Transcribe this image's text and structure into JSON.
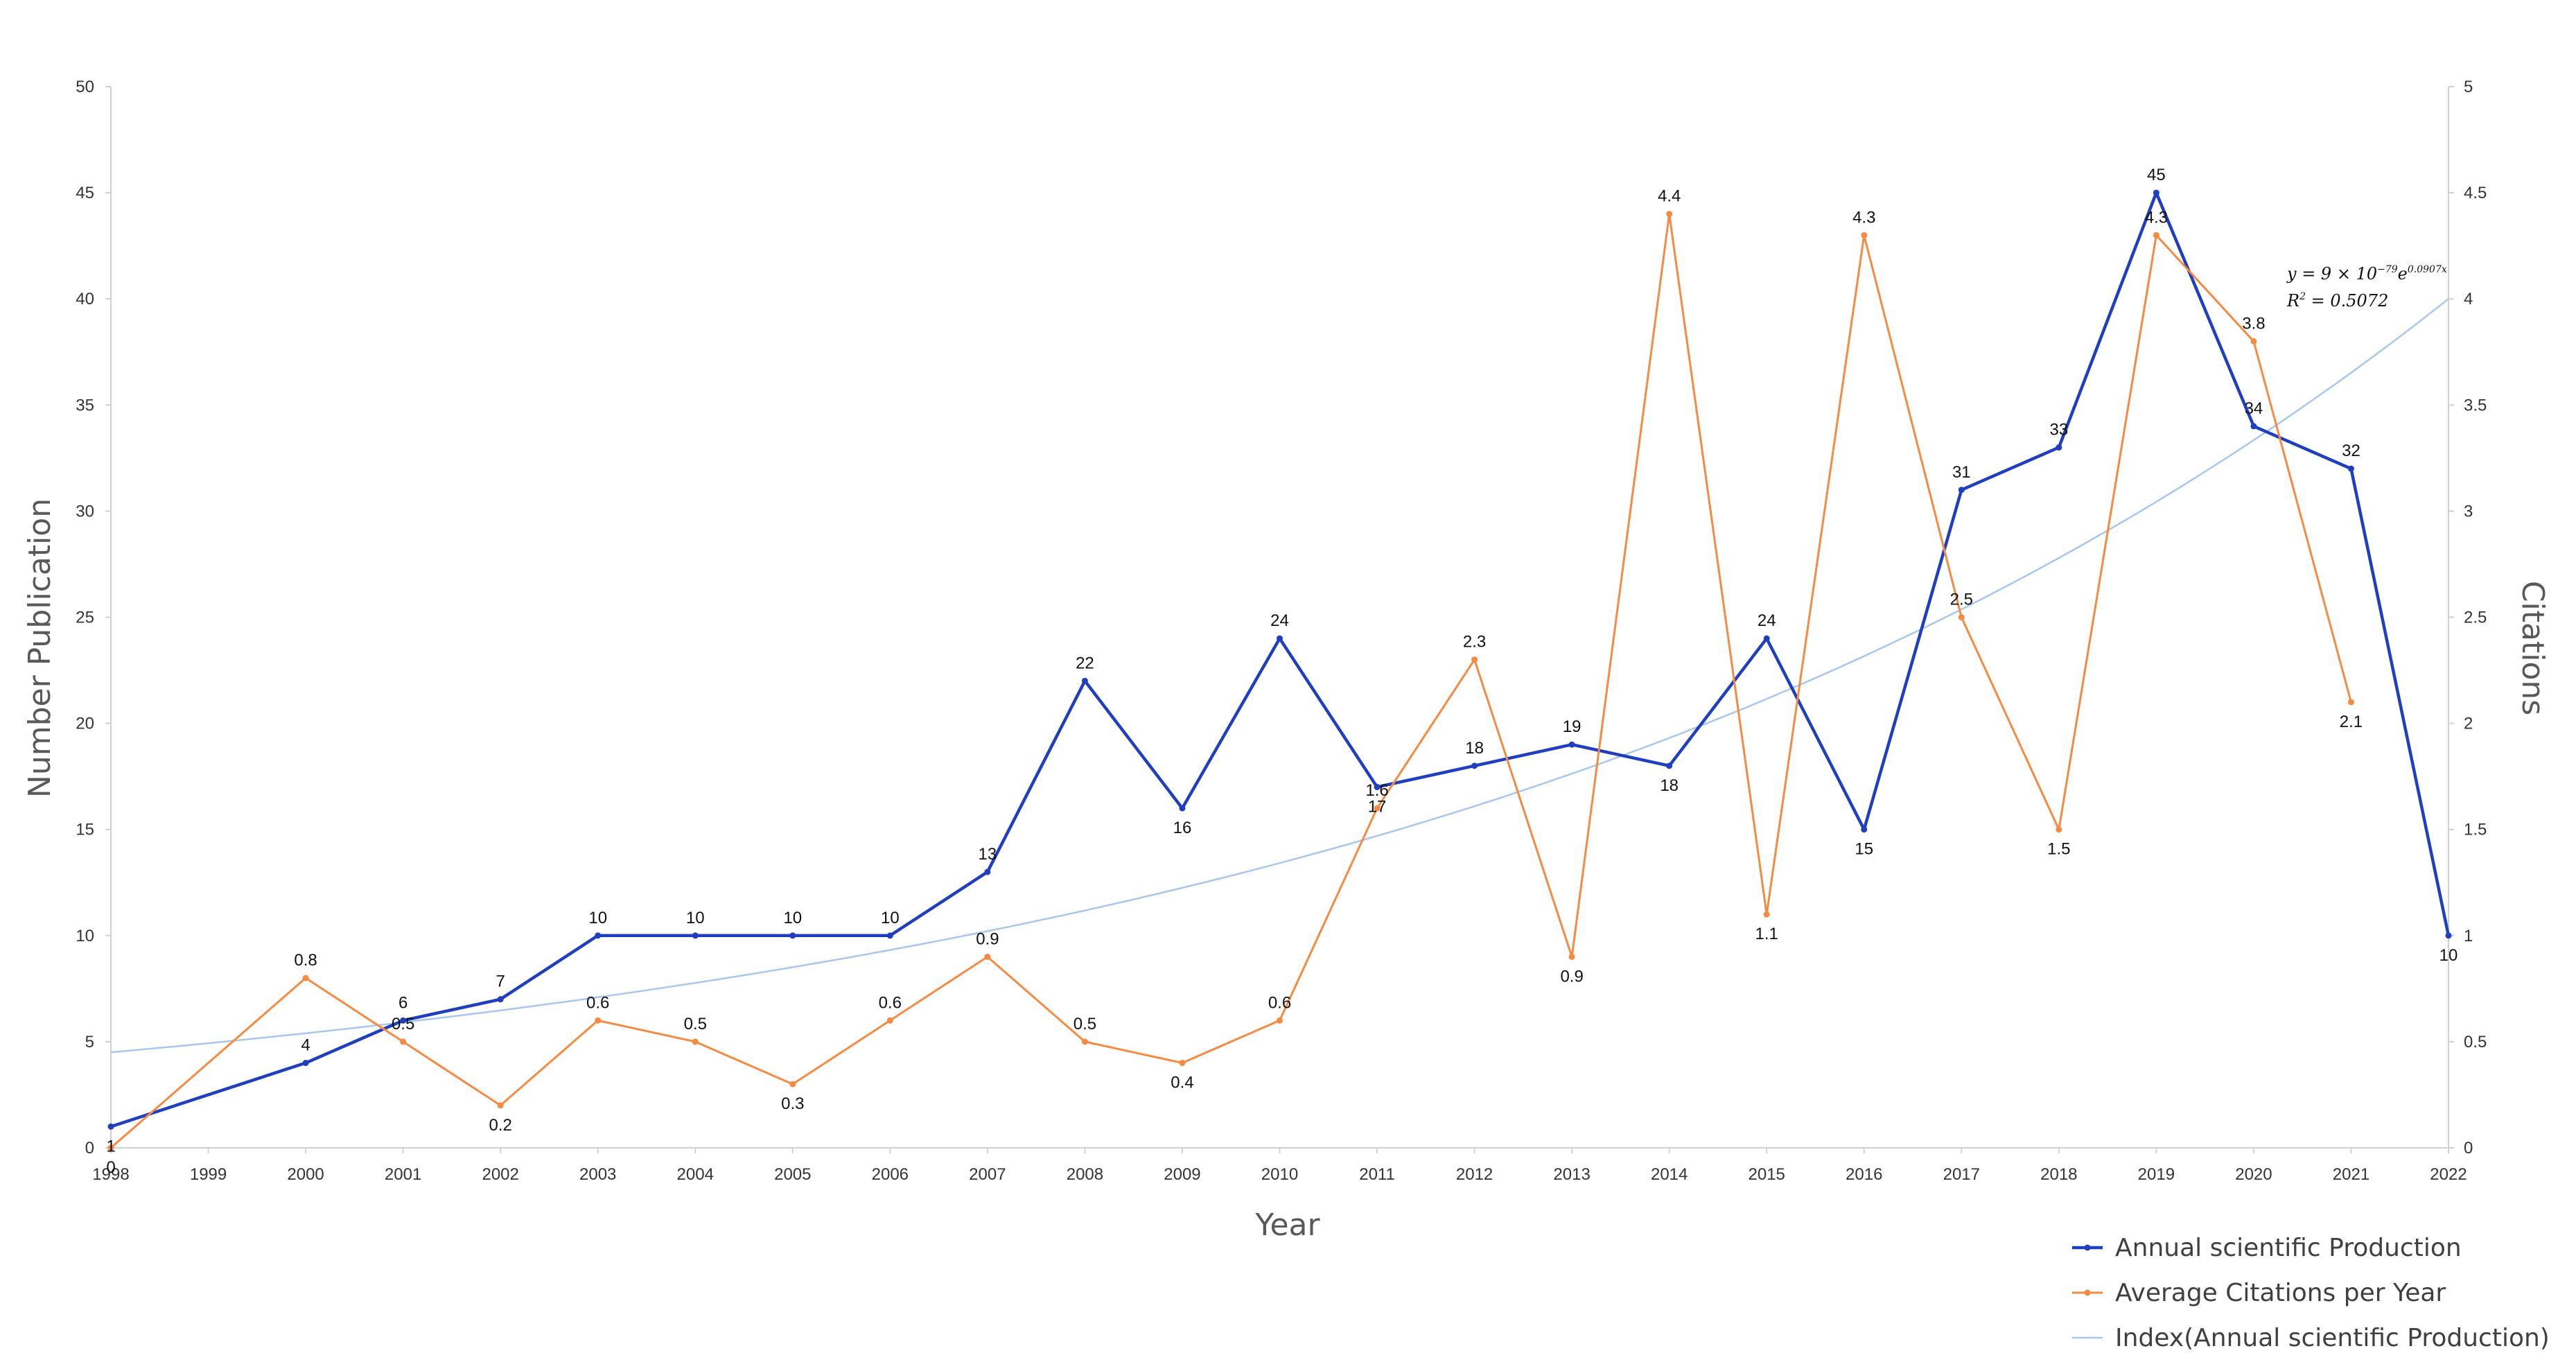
{
  "chart_data": {
    "type": "line",
    "xlabel": "Year",
    "ylabel": "Number Publication",
    "y2label": "Citations",
    "x": [
      1998,
      1999,
      2000,
      2001,
      2002,
      2003,
      2004,
      2005,
      2006,
      2007,
      2008,
      2009,
      2010,
      2011,
      2012,
      2013,
      2014,
      2015,
      2016,
      2017,
      2018,
      2019,
      2020,
      2021,
      2022
    ],
    "ylim": [
      0,
      50
    ],
    "y_ticks": [
      0,
      5,
      10,
      15,
      20,
      25,
      30,
      35,
      40,
      45,
      50
    ],
    "y2lim": [
      0,
      5
    ],
    "y2_ticks": [
      "0",
      "0.5",
      "1",
      "1.5",
      "2",
      "2.5",
      "3",
      "3.5",
      "4",
      "4.5",
      "5"
    ],
    "grid": false,
    "legend_position": "bottom-right",
    "series": [
      {
        "name": "Annual scientific Production",
        "axis": "left",
        "color": "#1f3fbf",
        "points": [
          [
            1998,
            1
          ],
          [
            2000,
            4
          ],
          [
            2001,
            6
          ],
          [
            2002,
            7
          ],
          [
            2003,
            10
          ],
          [
            2004,
            10
          ],
          [
            2005,
            10
          ],
          [
            2006,
            10
          ],
          [
            2007,
            13
          ],
          [
            2008,
            22
          ],
          [
            2009,
            16
          ],
          [
            2010,
            24
          ],
          [
            2011,
            17
          ],
          [
            2012,
            18
          ],
          [
            2013,
            19
          ],
          [
            2014,
            18
          ],
          [
            2015,
            24
          ],
          [
            2016,
            15
          ],
          [
            2017,
            31
          ],
          [
            2018,
            33
          ],
          [
            2019,
            45
          ],
          [
            2020,
            34
          ],
          [
            2021,
            32
          ],
          [
            2022,
            10
          ]
        ],
        "labels": [
          "1",
          "4",
          "6",
          "7",
          "10",
          "10",
          "10",
          "10",
          "13",
          "22",
          "16",
          "24",
          "17",
          "18",
          "19",
          "18",
          "24",
          "15",
          "31",
          "33",
          "45",
          "34",
          "32",
          "10"
        ]
      },
      {
        "name": "Average Citations per Year",
        "axis": "right",
        "color": "#f58a42",
        "points": [
          [
            1998,
            0
          ],
          [
            2000,
            0.8
          ],
          [
            2001,
            0.5
          ],
          [
            2002,
            0.2
          ],
          [
            2003,
            0.6
          ],
          [
            2004,
            0.5
          ],
          [
            2005,
            0.3
          ],
          [
            2006,
            0.6
          ],
          [
            2007,
            0.9
          ],
          [
            2008,
            0.5
          ],
          [
            2009,
            0.4
          ],
          [
            2010,
            0.6
          ],
          [
            2011,
            1.6
          ],
          [
            2012,
            2.3
          ],
          [
            2013,
            0.9
          ],
          [
            2014,
            4.4
          ],
          [
            2015,
            1.1
          ],
          [
            2016,
            4.3
          ],
          [
            2017,
            2.5
          ],
          [
            2018,
            1.5
          ],
          [
            2019,
            4.3
          ],
          [
            2020,
            3.8
          ],
          [
            2021,
            2.1
          ]
        ],
        "labels": [
          "0",
          "0.8",
          "0.5",
          "0.2",
          "0.6",
          "0.5",
          "0.3",
          "0.6",
          "0.9",
          "0.5",
          "0.4",
          "0.6",
          "1.6",
          "2.3",
          "0.9",
          "4.4",
          "1.1",
          "4.3",
          "2.5",
          "1.5",
          "4.3",
          "3.8",
          "2.1"
        ]
      },
      {
        "name": "Index(Annual scientific Production)",
        "axis": "left",
        "color": "#a9c6ec",
        "trend": "exponential",
        "start": [
          1998,
          4.5
        ],
        "end": [
          2022,
          40
        ]
      }
    ],
    "annotation": {
      "equation_base": "y = 9 × 10",
      "equation_exponent": "−79",
      "equation_tail": "e",
      "equation_tail_exponent": "0.0907x",
      "r2_label": "R",
      "r2_exponent": "2",
      "r2_value": " = 0.5072"
    }
  }
}
